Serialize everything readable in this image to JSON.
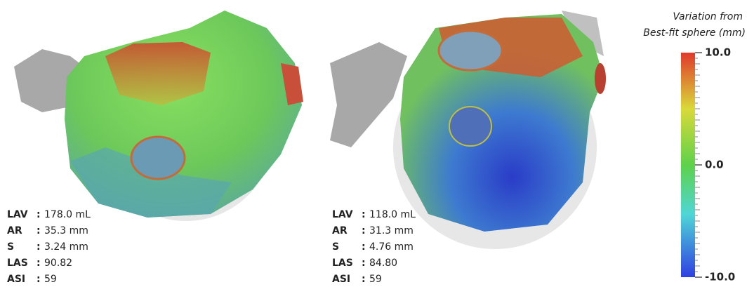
{
  "panels": [
    {
      "metrics": [
        {
          "label": "LAV",
          "value": "178.0 mL"
        },
        {
          "label": "AR",
          "value": "35.3 mm"
        },
        {
          "label": "S",
          "value": "3.24 mm"
        },
        {
          "label": "LAS",
          "value": "90.82"
        },
        {
          "label": "ASI",
          "value": "59"
        }
      ]
    },
    {
      "metrics": [
        {
          "label": "LAV",
          "value": "118.0 mL"
        },
        {
          "label": "AR",
          "value": "31.3 mm"
        },
        {
          "label": "S",
          "value": "4.76 mm"
        },
        {
          "label": "LAS",
          "value": "84.80"
        },
        {
          "label": "ASI",
          "value": "59"
        }
      ]
    }
  ],
  "separator": ":",
  "colorbar": {
    "title": [
      "Variation from",
      "Best-fit sphere (mm)"
    ],
    "range": [
      -10,
      10
    ],
    "ticks": [
      {
        "value": 10,
        "label": "10.0"
      },
      {
        "value": 0,
        "label": "0.0"
      },
      {
        "value": -10,
        "label": "-10.0"
      }
    ]
  }
}
